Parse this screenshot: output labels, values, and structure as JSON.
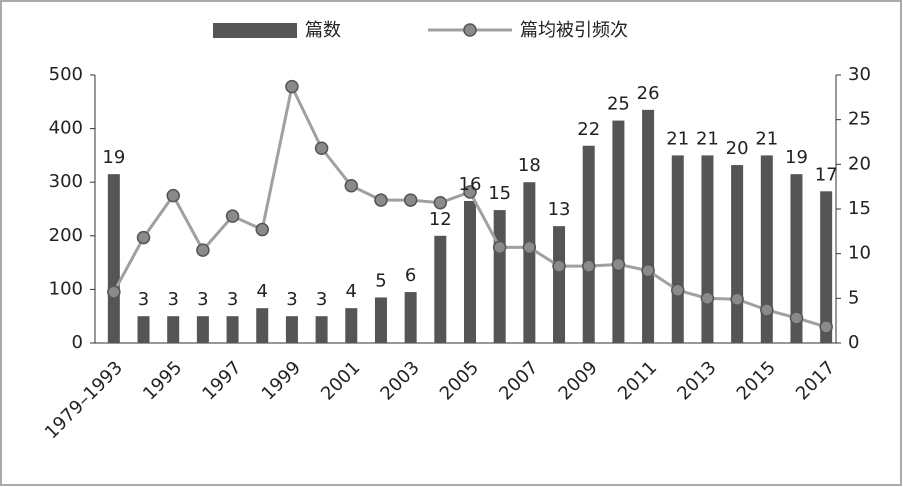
{
  "chart_data": {
    "type": "bar_line",
    "categories": [
      "1979–1993",
      null,
      "1995",
      null,
      "1997",
      null,
      "1999",
      null,
      "2001",
      null,
      "2003",
      null,
      "2005",
      null,
      "2007",
      null,
      "2009",
      null,
      "2011",
      null,
      "2013",
      null,
      "2015",
      null,
      "2017"
    ],
    "series": [
      {
        "name": "篇数",
        "color": "#555555",
        "type": "bar",
        "values": [
          315,
          50,
          50,
          50,
          50,
          65,
          50,
          50,
          65,
          85,
          95,
          200,
          265,
          248,
          300,
          218,
          368,
          415,
          435,
          350,
          350,
          332,
          350,
          315,
          283
        ],
        "labels": [
          19,
          3,
          3,
          3,
          3,
          4,
          3,
          3,
          4,
          5,
          6,
          12,
          16,
          15,
          18,
          13,
          22,
          25,
          26,
          21,
          21,
          20,
          21,
          19,
          17
        ]
      },
      {
        "name": "篇均被引频次",
        "color": "#a0a0a0",
        "type": "line",
        "axis": "y2",
        "values": [
          5.7,
          11.8,
          16.5,
          10.4,
          14.2,
          12.7,
          28.7,
          21.8,
          17.6,
          16,
          16,
          15.7,
          16.9,
          10.7,
          10.7,
          8.6,
          8.6,
          8.8,
          8.1,
          5.9,
          5,
          4.9,
          3.7,
          2.8,
          1.8
        ]
      }
    ],
    "ylim": [
      0,
      500
    ],
    "yticks": [
      0,
      100,
      200,
      300,
      400,
      500
    ],
    "y2lim": [
      0,
      30
    ],
    "y2ticks": [
      0,
      5,
      10,
      15,
      20,
      25,
      30
    ]
  }
}
